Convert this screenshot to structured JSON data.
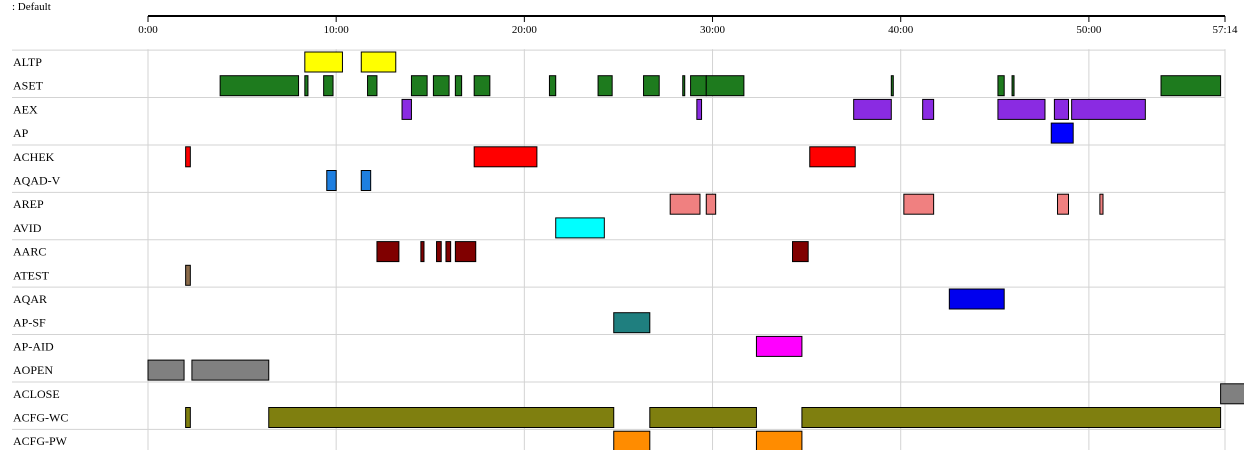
{
  "chart_data": {
    "type": "timeline",
    "caption": ": Default",
    "x_range": [
      "0:00",
      "57:14"
    ],
    "x_ticks": [
      "0:00",
      "10:00",
      "20:00",
      "30:00",
      "40:00",
      "50:00",
      "57:14"
    ],
    "x_tick_values_sec": [
      0,
      600,
      1200,
      1800,
      2400,
      3000,
      3434
    ],
    "grid": true,
    "rows": [
      {
        "name": "ALTP",
        "color": "#ffff00",
        "segments": [
          [
            500,
            620
          ],
          [
            680,
            790
          ]
        ]
      },
      {
        "name": "ASET",
        "color": "#1e7b1e",
        "segments": [
          [
            230,
            480
          ],
          [
            500,
            510
          ],
          [
            560,
            590
          ],
          [
            700,
            730
          ],
          [
            840,
            890
          ],
          [
            910,
            960
          ],
          [
            980,
            1000
          ],
          [
            1040,
            1090
          ],
          [
            1280,
            1300
          ],
          [
            1435,
            1480
          ],
          [
            1580,
            1630
          ],
          [
            1705,
            1710
          ],
          [
            1730,
            1780
          ],
          [
            1780,
            1900
          ],
          [
            2370,
            2372
          ],
          [
            2710,
            2730
          ],
          [
            2755,
            2757
          ],
          [
            3230,
            3420
          ]
        ]
      },
      {
        "name": "AEX",
        "color": "#8a2be2",
        "segments": [
          [
            810,
            840
          ],
          [
            1750,
            1765
          ],
          [
            2250,
            2370
          ],
          [
            2470,
            2505
          ],
          [
            2710,
            2860
          ],
          [
            2890,
            2935
          ],
          [
            2945,
            3180
          ]
        ]
      },
      {
        "name": "AP",
        "color": "#0000ff",
        "segments": [
          [
            2880,
            2950
          ]
        ]
      },
      {
        "name": "ACHEK",
        "color": "#ff0000",
        "segments": [
          [
            120,
            135
          ],
          [
            1040,
            1240
          ],
          [
            2110,
            2255
          ]
        ]
      },
      {
        "name": "AQAD-V",
        "color": "#1e7fe0",
        "segments": [
          [
            570,
            600
          ],
          [
            680,
            710
          ]
        ]
      },
      {
        "name": "AREP",
        "color": "#f08080",
        "segments": [
          [
            1665,
            1760
          ],
          [
            1780,
            1810
          ],
          [
            2410,
            2505
          ],
          [
            2900,
            2935
          ],
          [
            3035,
            3045
          ]
        ]
      },
      {
        "name": "AVID",
        "color": "#00ffff",
        "segments": [
          [
            1300,
            1455
          ]
        ]
      },
      {
        "name": "AARC",
        "color": "#800000",
        "segments": [
          [
            730,
            800
          ],
          [
            870,
            880
          ],
          [
            920,
            935
          ],
          [
            950,
            965
          ],
          [
            980,
            1045
          ],
          [
            2055,
            2105
          ]
        ]
      },
      {
        "name": "ATEST",
        "color": "#8b6b4a",
        "segments": [
          [
            120,
            135
          ]
        ]
      },
      {
        "name": "AQAR",
        "color": "#0000ee",
        "segments": [
          [
            2555,
            2730
          ]
        ]
      },
      {
        "name": "AP-SF",
        "color": "#1f7f7f",
        "segments": [
          [
            1485,
            1600
          ]
        ]
      },
      {
        "name": "AP-AID",
        "color": "#ff00ff",
        "segments": [
          [
            1940,
            2085
          ]
        ]
      },
      {
        "name": "AOPEN",
        "color": "#808080",
        "segments": [
          [
            0,
            115
          ],
          [
            140,
            385
          ]
        ]
      },
      {
        "name": "ACLOSE",
        "color": "#808080",
        "segments": [
          [
            3420,
            3500
          ]
        ]
      },
      {
        "name": "ACFG-WC",
        "color": "#7f7f0f",
        "segments": [
          [
            120,
            135
          ],
          [
            385,
            1485
          ],
          [
            1600,
            1940
          ],
          [
            2085,
            3420
          ]
        ]
      },
      {
        "name": "ACFG-PW",
        "color": "#ff8c00",
        "segments": [
          [
            1485,
            1600
          ],
          [
            1940,
            2085
          ]
        ]
      }
    ]
  }
}
